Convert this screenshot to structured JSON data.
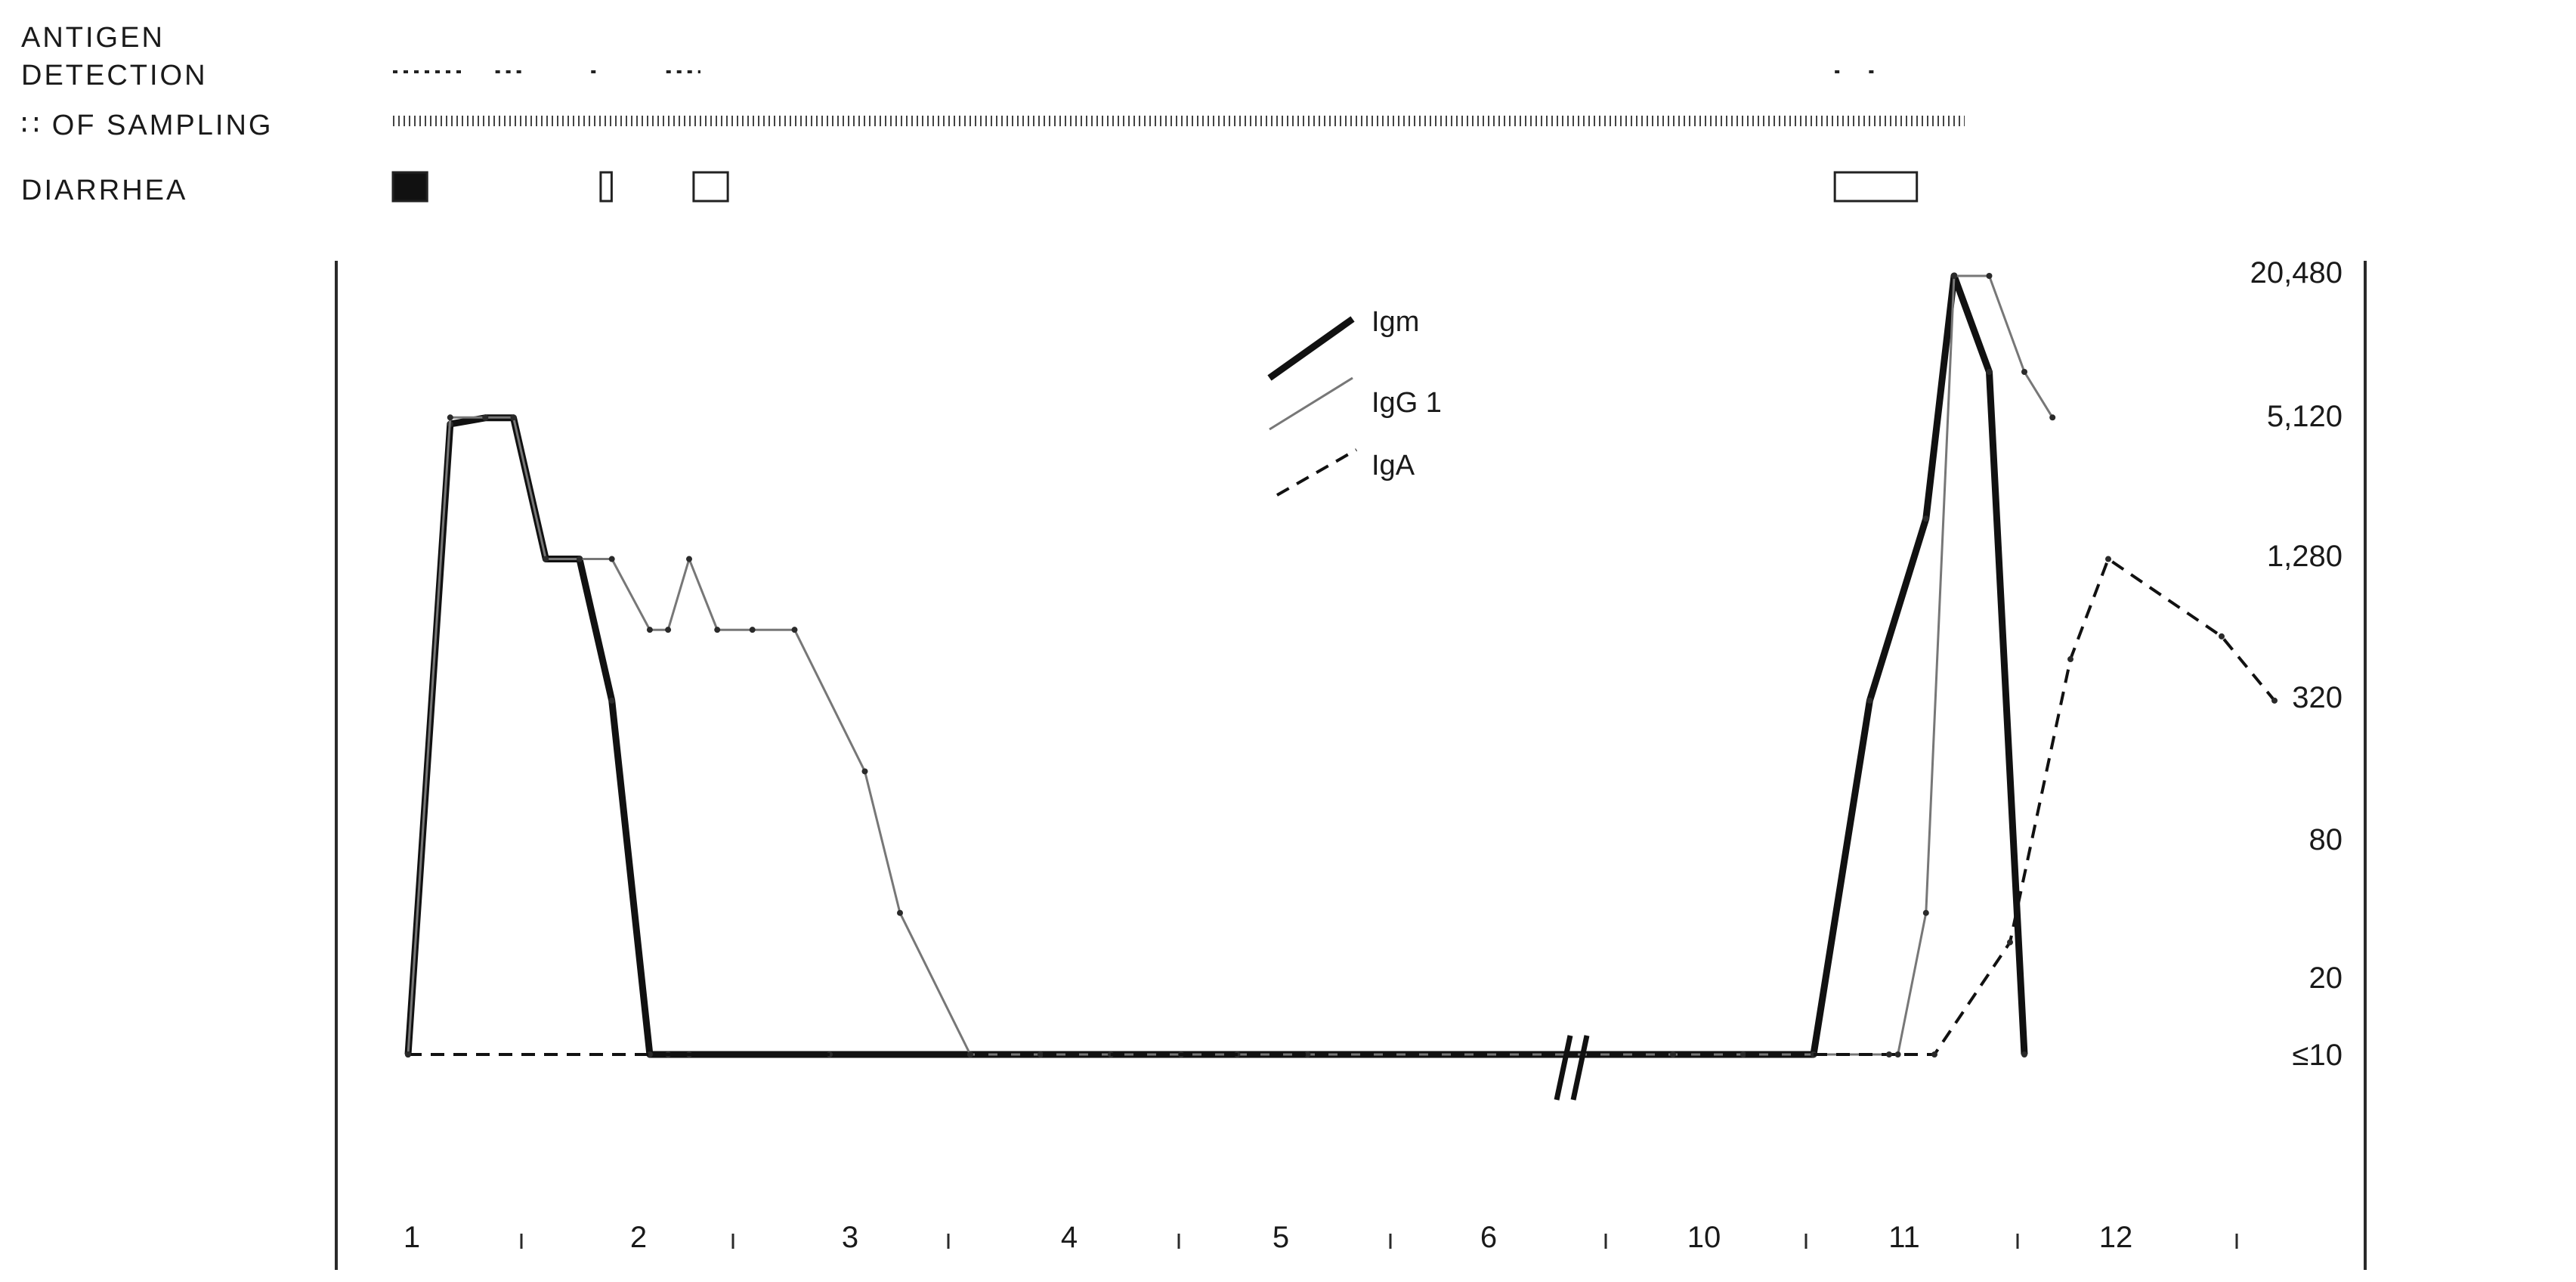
{
  "chart_data": {
    "type": "line",
    "title": "",
    "xlabel": "",
    "ylabel": "",
    "x_tick_labels": [
      "1",
      "2",
      "3",
      "4",
      "5",
      "6",
      "10",
      "11",
      "12"
    ],
    "y_tick_labels": [
      "≤10",
      "20",
      "80",
      "320",
      "1,280",
      "5,120",
      "20,480"
    ],
    "y_scale": "log",
    "ylim": [
      10,
      20480
    ],
    "axis_break_after_category": "6",
    "legend": {
      "position": "top-center",
      "entries": [
        "Igm",
        "IgG 1",
        "IgA"
      ]
    },
    "series": [
      {
        "name": "Igm",
        "style": "thick-solid",
        "x": [
          1.0,
          1.3,
          1.55,
          1.75,
          1.98,
          2.22,
          2.45,
          2.72,
          2.85,
          3.0,
          4.0,
          5.0,
          5.5,
          6.0,
          6.5,
          6.9,
          7.4,
          10.0,
          10.5,
          11.0,
          11.4,
          11.8,
          12.0,
          12.25,
          12.5
        ],
        "y": [
          10,
          4800,
          5100,
          5100,
          1280,
          1280,
          320,
          10,
          10,
          10,
          10,
          10,
          10,
          10,
          10,
          10,
          10,
          10,
          10,
          10,
          320,
          1900,
          20480,
          8000,
          10
        ]
      },
      {
        "name": "IgG 1",
        "style": "thin-solid",
        "x": [
          1.0,
          1.3,
          1.55,
          1.75,
          1.98,
          2.22,
          2.45,
          2.72,
          2.85,
          3.0,
          3.2,
          3.45,
          3.75,
          4.25,
          4.5,
          5.0,
          5.5,
          6.0,
          6.5,
          6.9,
          7.4,
          10.0,
          10.5,
          11.0,
          11.6,
          11.8,
          12.0,
          12.25,
          12.5,
          12.7
        ],
        "y": [
          10,
          5120,
          5120,
          5120,
          1280,
          1280,
          1280,
          640,
          640,
          1280,
          640,
          640,
          640,
          160,
          40,
          10,
          10,
          10,
          10,
          10,
          10,
          10,
          10,
          10,
          10,
          40,
          20480,
          20480,
          8000,
          5120
        ]
      },
      {
        "name": "IgA",
        "style": "dashed",
        "x": [
          1.0,
          12.4,
          13.1,
          13.7,
          14.4,
          14.8,
          15.2,
          15.6
        ],
        "y": [
          10,
          10,
          10,
          30,
          480,
          1280,
          600,
          320
        ]
      }
    ],
    "top_tracks": [
      {
        "label": "ANTIGEN",
        "label2": "DETECTION",
        "marks": [
          [
            1.0,
            1.5
          ],
          [
            1.75,
            1.95
          ],
          [
            2.45,
            2.5
          ],
          [
            3.0,
            3.25
          ],
          [
            11.55,
            11.6
          ],
          [
            11.8,
            11.85
          ]
        ]
      },
      {
        "label": "∷ OF SAMPLING",
        "marks": [
          [
            1.0,
            12.5
          ]
        ]
      },
      {
        "label": "DIARRHEA",
        "marks": [
          [
            1.0,
            1.25,
            "filled"
          ],
          [
            2.52,
            2.6,
            "open"
          ],
          [
            3.2,
            3.45,
            "open"
          ],
          [
            11.55,
            12.15,
            "open"
          ]
        ]
      }
    ]
  }
}
